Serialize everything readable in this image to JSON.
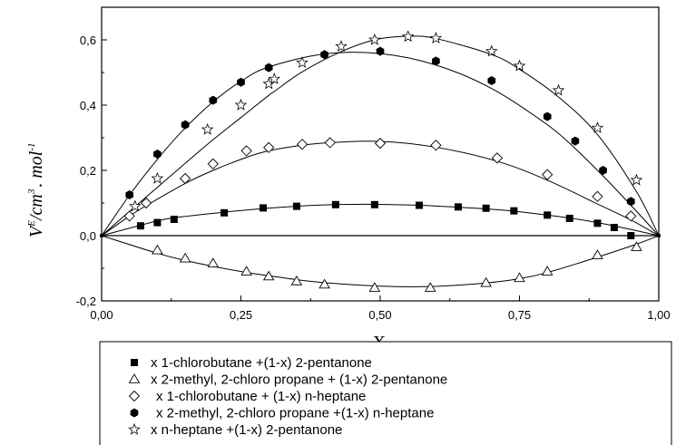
{
  "chart_data": {
    "type": "scatter",
    "xlabel": "X",
    "ylabel": "V",
    "ylabel_sup": "E",
    "ylabel_unit": "/cm",
    "ylabel_unit_sup": "3",
    "ylabel_unit2": ". mol",
    "ylabel_unit2_sup": "-1",
    "xlim": [
      0,
      1
    ],
    "ylim": [
      -0.2,
      0.7
    ],
    "xticks": [
      {
        "value": 0,
        "label": "0,00"
      },
      {
        "value": 0.25,
        "label": "0,25"
      },
      {
        "value": 0.5,
        "label": "0,50"
      },
      {
        "value": 0.75,
        "label": "0,75"
      },
      {
        "value": 1,
        "label": "1,00"
      }
    ],
    "yticks": [
      {
        "value": -0.2,
        "label": "-0,2"
      },
      {
        "value": 0,
        "label": "0,0"
      },
      {
        "value": 0.2,
        "label": "0,2"
      },
      {
        "value": 0.4,
        "label": "0,4"
      },
      {
        "value": 0.6,
        "label": "0,6"
      }
    ],
    "legend_position": "bottom",
    "series": [
      {
        "name": "x 1-chlorobutane +(1-x) 2-pentanone",
        "marker": "square-filled",
        "x": [
          0,
          0.07,
          0.1,
          0.13,
          0.22,
          0.29,
          0.35,
          0.42,
          0.49,
          0.57,
          0.64,
          0.69,
          0.74,
          0.8,
          0.84,
          0.89,
          0.92,
          0.95,
          1.0
        ],
        "y": [
          0,
          0.03,
          0.04,
          0.05,
          0.07,
          0.085,
          0.09,
          0.095,
          0.095,
          0.093,
          0.088,
          0.084,
          0.076,
          0.063,
          0.053,
          0.038,
          0.025,
          0.0,
          0
        ],
        "curve": [
          0,
          0.032,
          0.045,
          0.055,
          0.072,
          0.083,
          0.09,
          0.095,
          0.096,
          0.093,
          0.087,
          0.082,
          0.075,
          0.063,
          0.054,
          0.04,
          0.03,
          0.019,
          0
        ]
      },
      {
        "name": "x 2-methyl, 2-chloro propane + (1-x) 2-pentanone",
        "marker": "triangle-open",
        "x": [
          0,
          0.1,
          0.15,
          0.2,
          0.26,
          0.3,
          0.35,
          0.4,
          0.49,
          0.59,
          0.69,
          0.75,
          0.8,
          0.89,
          0.96,
          1.0
        ],
        "y": [
          0,
          -0.045,
          -0.07,
          -0.085,
          -0.11,
          -0.125,
          -0.14,
          -0.15,
          -0.16,
          -0.16,
          -0.145,
          -0.13,
          -0.11,
          -0.06,
          -0.035,
          0
        ],
        "curve": [
          0,
          -0.054,
          -0.076,
          -0.094,
          -0.113,
          -0.123,
          -0.135,
          -0.144,
          -0.154,
          -0.156,
          -0.145,
          -0.132,
          -0.113,
          -0.066,
          -0.026,
          0
        ]
      },
      {
        "name": "x 1-chlorobutane + (1-x) n-heptane",
        "marker": "diamond-open",
        "x": [
          0,
          0.05,
          0.08,
          0.15,
          0.2,
          0.26,
          0.3,
          0.36,
          0.41,
          0.5,
          0.6,
          0.71,
          0.8,
          0.89,
          0.95,
          1.0
        ],
        "y": [
          0,
          0.06,
          0.1,
          0.175,
          0.22,
          0.26,
          0.27,
          0.28,
          0.285,
          0.283,
          0.277,
          0.238,
          0.187,
          0.12,
          0.06,
          0
        ],
        "curve": [
          0,
          0.06,
          0.092,
          0.16,
          0.2,
          0.24,
          0.26,
          0.277,
          0.285,
          0.289,
          0.271,
          0.228,
          0.17,
          0.097,
          0.048,
          0
        ]
      },
      {
        "name": "x 2-methyl, 2-chloro propane +(1-x)  n-heptane",
        "marker": "hexagon-filled",
        "x": [
          0,
          0.05,
          0.1,
          0.15,
          0.2,
          0.25,
          0.3,
          0.4,
          0.5,
          0.6,
          0.7,
          0.8,
          0.85,
          0.9,
          0.95,
          1.0
        ],
        "y": [
          0,
          0.125,
          0.25,
          0.34,
          0.415,
          0.47,
          0.515,
          0.555,
          0.565,
          0.535,
          0.475,
          0.365,
          0.29,
          0.2,
          0.105,
          0
        ],
        "curve": [
          0,
          0.124,
          0.234,
          0.33,
          0.41,
          0.473,
          0.517,
          0.557,
          0.558,
          0.523,
          0.451,
          0.34,
          0.267,
          0.183,
          0.093,
          0
        ]
      },
      {
        "name": "x n-heptane +(1-x) 2-pentanone",
        "marker": "star-open",
        "x": [
          0,
          0.06,
          0.1,
          0.19,
          0.25,
          0.3,
          0.31,
          0.36,
          0.43,
          0.49,
          0.55,
          0.6,
          0.7,
          0.75,
          0.82,
          0.89,
          0.96,
          1.0
        ],
        "y": [
          0,
          0.09,
          0.175,
          0.325,
          0.4,
          0.465,
          0.48,
          0.53,
          0.58,
          0.6,
          0.61,
          0.605,
          0.565,
          0.52,
          0.445,
          0.33,
          0.17,
          0
        ],
        "curve": [
          0,
          0.089,
          0.148,
          0.28,
          0.362,
          0.43,
          0.442,
          0.502,
          0.564,
          0.6,
          0.611,
          0.604,
          0.555,
          0.51,
          0.425,
          0.31,
          0.135,
          0
        ]
      }
    ]
  }
}
